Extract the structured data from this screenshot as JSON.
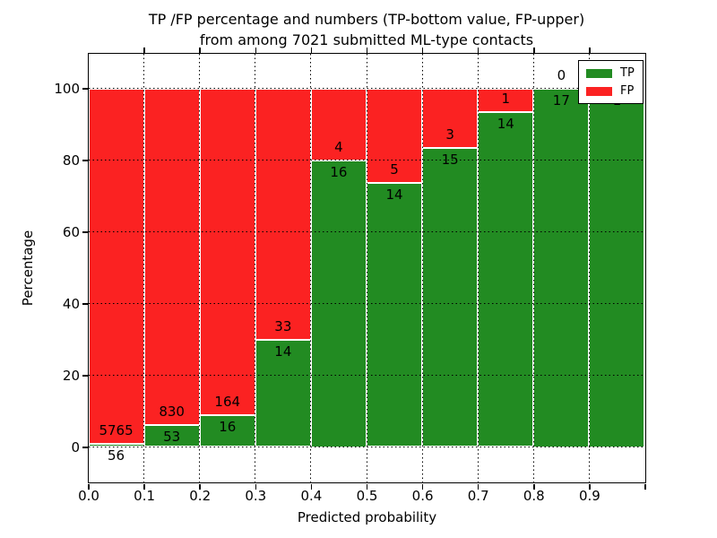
{
  "title": {
    "line1": "TP /FP percentage and numbers (TP-bottom value, FP-upper)",
    "line2": "from among 7021 submitted ML-type contacts"
  },
  "axes": {
    "x_label": "Predicted probability",
    "y_label": "Percentage",
    "x_tick_labels": [
      "0.0",
      "0.1",
      "0.2",
      "0.3",
      "0.4",
      "0.5",
      "0.6",
      "0.7",
      "0.8",
      "0.9"
    ],
    "y_tick_labels": [
      "0",
      "20",
      "40",
      "60",
      "80",
      "100"
    ]
  },
  "legend": [
    {
      "label": "TP",
      "color": "#228b22"
    },
    {
      "label": "FP",
      "color": "#fb2222"
    }
  ],
  "colors": {
    "tp_green": "#228b22",
    "fp_red": "#fb2222",
    "grid": "#000000",
    "bar_edge": "#ffffff",
    "background": "#ffffff"
  },
  "chart_data": {
    "type": "bar",
    "stacked": true,
    "normalized": "each bin scaled to 100%",
    "bins": [
      "0.0-0.1",
      "0.1-0.2",
      "0.2-0.3",
      "0.3-0.4",
      "0.4-0.5",
      "0.5-0.6",
      "0.6-0.7",
      "0.7-0.8",
      "0.8-0.9",
      "0.9-1.0"
    ],
    "bin_edges": [
      0.0,
      0.1,
      0.2,
      0.3,
      0.4,
      0.5,
      0.6,
      0.7,
      0.8,
      0.9,
      1.0
    ],
    "series": [
      {
        "name": "TP",
        "color": "#228b22",
        "counts": [
          56,
          53,
          16,
          14,
          16,
          14,
          15,
          14,
          17,
          1
        ]
      },
      {
        "name": "FP",
        "color": "#fb2222",
        "counts": [
          5765,
          830,
          164,
          33,
          4,
          5,
          3,
          1,
          0,
          0
        ]
      }
    ],
    "tp_percent_of_bin": [
      0.96,
      6.0,
      8.89,
      29.79,
      80.0,
      73.68,
      83.33,
      93.33,
      100.0,
      100.0
    ],
    "total_contacts": 7021,
    "title": "TP /FP percentage and numbers (TP-bottom value, FP-upper) from among 7021 submitted ML-type contacts",
    "xlabel": "Predicted probability",
    "ylabel": "Percentage",
    "xlim": [
      0.0,
      1.0
    ],
    "ylim": [
      -9.75,
      109.75
    ],
    "y_gridlines": [
      0,
      20,
      40,
      60,
      80,
      100
    ],
    "x_gridlines": [
      0.1,
      0.2,
      0.3,
      0.4,
      0.5,
      0.6,
      0.7,
      0.8,
      0.9
    ],
    "grid_style": "dotted black, drawn above bars",
    "legend_position": "upper right",
    "note_label_convention": "FP count printed above TP/FP boundary, TP count below; last bin FP label hidden behind legend"
  }
}
